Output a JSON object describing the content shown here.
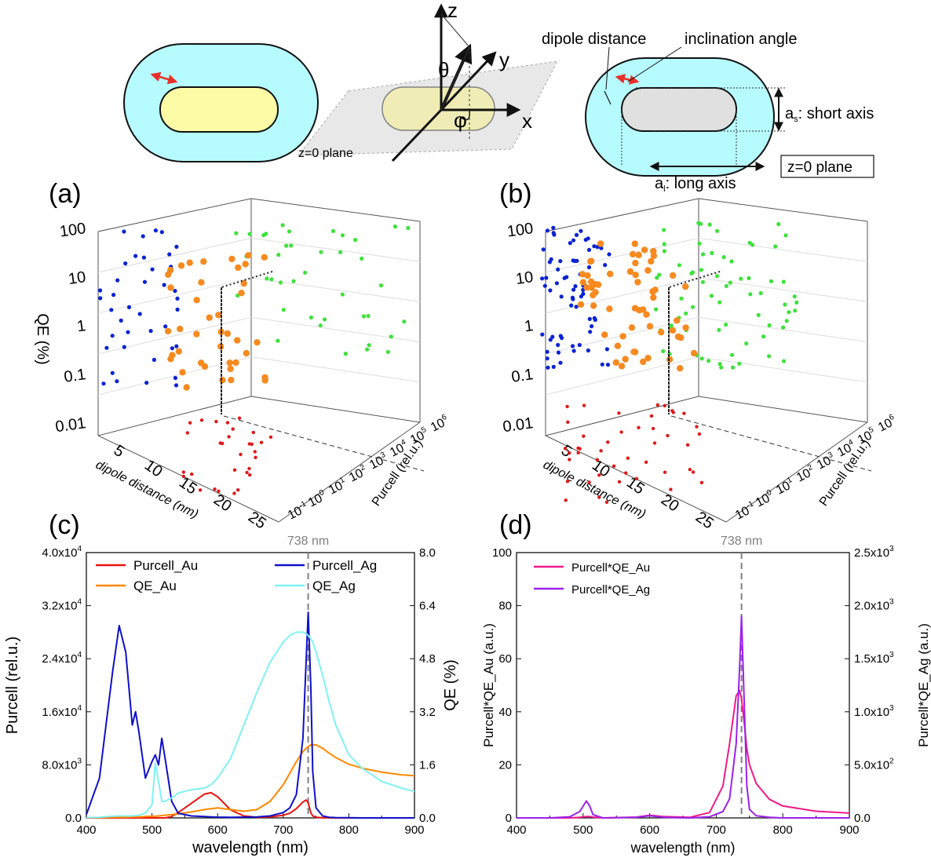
{
  "schematic": {
    "dipole_distance": "dipole distance",
    "inclination_angle": "inclination angle",
    "short_axis_sym": "a",
    "short_axis_sub": "s",
    "short_axis_text": ": short axis",
    "long_axis_sym": "a",
    "long_axis_sub": "l",
    "long_axis_text": ": long axis",
    "plane_label": "z=0 plane",
    "plane_label_box": "z=0 plane",
    "axis_x": "x",
    "axis_y": "y",
    "axis_z": "z",
    "theta": "θ",
    "phi": "φ"
  },
  "panels": {
    "a": "(a)",
    "b": "(b)",
    "c": "(c)",
    "d": "(d)"
  },
  "colors": {
    "shell": "#b6fbff",
    "core_au": "#fdfba6",
    "core_ag": "#e0e0e0",
    "dipole": "#e8302a",
    "blue_pts": "#0a23d2",
    "green_pts": "#3ee23a",
    "orange_pts": "#f78a1f",
    "red_pts": "#e01818",
    "purcell_au": "#e8120c",
    "qe_au": "#ff8800",
    "purcell_ag": "#1010c8",
    "qe_ag": "#7ff3f3",
    "pqe_au": "#ee1a8a",
    "pqe_ag": "#9b21e8",
    "guide": "#808080"
  },
  "chart_data": [
    {
      "panel": "(a)",
      "type": "scatter",
      "zlabel": "QE (%)",
      "xlabel": "dipole distance (nm)",
      "ylabel": "Purcell (rel.u.)",
      "z_ticks": [
        "100",
        "10",
        "1",
        "0.1",
        "0.01"
      ],
      "x_ticks": [
        "5",
        "10",
        "15",
        "20",
        "25"
      ],
      "y_ticks": [
        "10",
        "10",
        "10",
        "10",
        "10",
        "10",
        "10",
        "10"
      ],
      "y_tick_exps": [
        "-1",
        "0",
        "1",
        "2",
        "3",
        "4",
        "5",
        "6"
      ]
    },
    {
      "panel": "(b)",
      "type": "scatter",
      "zlabel": "",
      "xlabel": "dipole distance (nm)",
      "ylabel": "Purcell (rel.u.)",
      "z_ticks": [
        "100",
        "10",
        "1",
        "0.1",
        "0.01"
      ],
      "x_ticks": [
        "5",
        "10",
        "15",
        "20",
        "25"
      ],
      "y_ticks": [
        "10",
        "10",
        "10",
        "10",
        "10",
        "10",
        "10",
        "10"
      ],
      "y_tick_exps": [
        "-1",
        "0",
        "1",
        "2",
        "3",
        "4",
        "5",
        "6"
      ]
    },
    {
      "panel": "(c)",
      "type": "line",
      "xlabel": "wavelength (nm)",
      "ylabel": "Purcell (rel.u.)",
      "y2label": "QE (%)",
      "xlim": [
        400,
        900
      ],
      "ylim": [
        0,
        40000
      ],
      "y2lim": [
        0,
        8
      ],
      "x_ticks": [
        "400",
        "500",
        "600",
        "700",
        "800",
        "900"
      ],
      "y_ticks": [
        "0.0",
        "8.0x10",
        "1.6x10",
        "2.4x10",
        "3.2x10",
        "4.0x10"
      ],
      "y_tick_exps": [
        "",
        "3",
        "4",
        "4",
        "4",
        "4"
      ],
      "y2_ticks": [
        "0.0",
        "1.6",
        "3.2",
        "4.8",
        "6.4",
        "8.0"
      ],
      "marker_label": "738 nm",
      "marker_x": 738,
      "x": [
        400,
        420,
        440,
        450,
        460,
        470,
        475,
        480,
        490,
        500,
        505,
        510,
        515,
        520,
        530,
        540,
        560,
        580,
        590,
        600,
        620,
        640,
        660,
        680,
        700,
        710,
        720,
        730,
        735,
        738,
        742,
        745,
        750,
        760,
        770,
        780,
        800,
        820,
        850,
        880,
        900
      ],
      "series": [
        {
          "name": "Purcell_Au",
          "axis": "left",
          "values": [
            0,
            0,
            0,
            0,
            0,
            0,
            0,
            0,
            0,
            0,
            0,
            0,
            0,
            0,
            200,
            800,
            2200,
            3600,
            3800,
            3200,
            1200,
            300,
            100,
            150,
            400,
            700,
            1400,
            2400,
            2700,
            2300,
            800,
            300,
            100,
            30,
            10,
            0,
            0,
            0,
            0,
            0,
            0
          ]
        },
        {
          "name": "QE_Au",
          "axis": "right",
          "values": [
            0.01,
            0.01,
            0.02,
            0.02,
            0.02,
            0.03,
            0.03,
            0.03,
            0.04,
            0.05,
            0.05,
            0.06,
            0.07,
            0.08,
            0.1,
            0.12,
            0.18,
            0.25,
            0.28,
            0.3,
            0.25,
            0.2,
            0.25,
            0.5,
            1.0,
            1.35,
            1.7,
            2.0,
            2.1,
            2.15,
            2.2,
            2.2,
            2.2,
            2.1,
            1.95,
            1.82,
            1.62,
            1.5,
            1.38,
            1.3,
            1.27
          ]
        },
        {
          "name": "Purcell_Ag",
          "axis": "left",
          "values": [
            500,
            6000,
            22000,
            29000,
            25000,
            14000,
            16000,
            13000,
            6000,
            8500,
            9500,
            8000,
            12000,
            9000,
            2500,
            700,
            300,
            200,
            150,
            120,
            100,
            120,
            150,
            300,
            800,
            1500,
            3500,
            12000,
            24000,
            31000,
            20000,
            7000,
            1500,
            300,
            100,
            50,
            20,
            0,
            0,
            0,
            0
          ]
        },
        {
          "name": "QE_Ag",
          "axis": "right",
          "values": [
            0.01,
            0.02,
            0.05,
            0.06,
            0.06,
            0.06,
            0.07,
            0.08,
            0.15,
            0.4,
            1.65,
            1.1,
            0.5,
            0.5,
            0.6,
            0.75,
            0.85,
            0.9,
            1.0,
            1.2,
            1.8,
            2.8,
            3.8,
            4.7,
            5.3,
            5.5,
            5.6,
            5.6,
            5.55,
            5.5,
            5.4,
            5.3,
            5.0,
            4.3,
            3.5,
            2.8,
            1.9,
            1.5,
            1.1,
            0.9,
            0.8
          ]
        }
      ]
    },
    {
      "panel": "(d)",
      "type": "line",
      "xlabel": "wavelength (nm)",
      "ylabel": "Purcell*QE_Au (a.u.)",
      "y2label": "Purcell*QE_Ag (a.u.)",
      "xlim": [
        400,
        900
      ],
      "ylim": [
        0,
        100
      ],
      "y2lim": [
        0,
        2500
      ],
      "x_ticks": [
        "400",
        "500",
        "600",
        "700",
        "800",
        "900"
      ],
      "y_ticks": [
        "0",
        "20",
        "40",
        "60",
        "80",
        "100"
      ],
      "y2_ticks": [
        "0.0",
        "5.0x10",
        "1.0x10",
        "1.5x10",
        "2.0x10",
        "2.5x10"
      ],
      "y2_tick_exps": [
        "",
        "2",
        "3",
        "3",
        "3",
        "3"
      ],
      "marker_label": "738 nm",
      "marker_x": 738,
      "x": [
        400,
        450,
        480,
        495,
        505,
        510,
        515,
        530,
        580,
        600,
        620,
        660,
        690,
        710,
        720,
        730,
        735,
        738,
        742,
        746,
        750,
        760,
        780,
        800,
        850,
        900
      ],
      "series": [
        {
          "name": "Purcell*QE_Au",
          "axis": "left",
          "values": [
            0,
            0,
            0,
            0.2,
            0.5,
            0.5,
            0.3,
            0,
            0.3,
            1.0,
            0.5,
            0.2,
            2,
            12,
            28,
            46,
            48,
            45,
            36,
            26,
            20,
            13,
            7,
            4.5,
            2.5,
            1.8
          ]
        },
        {
          "name": "Purcell*QE_Ag",
          "axis": "right",
          "values": [
            0,
            0,
            10,
            60,
            160,
            110,
            30,
            0,
            5,
            20,
            5,
            0,
            10,
            60,
            180,
            700,
            1400,
            1900,
            1100,
            300,
            80,
            20,
            5,
            0,
            0,
            0
          ]
        }
      ]
    }
  ]
}
